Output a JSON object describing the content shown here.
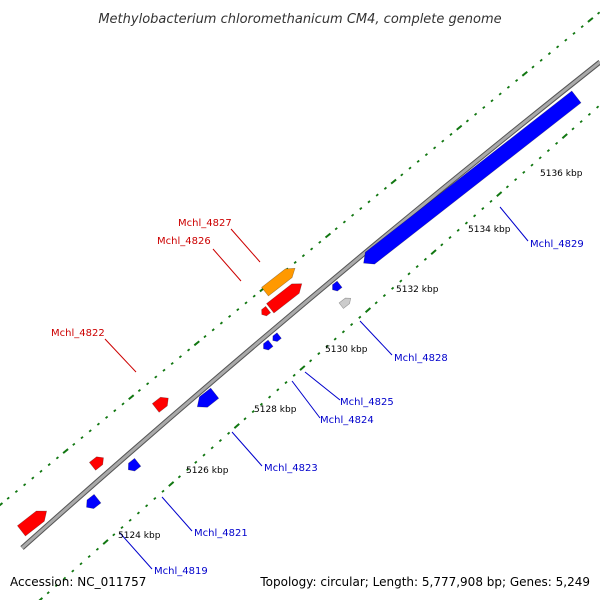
{
  "title": "Methylobacterium chloromethanicum CM4, complete genome",
  "footer": {
    "accession": "Accession: NC_011757",
    "topology": "Topology: circular; Length: 5,777,908 bp; Genes: 5,249"
  },
  "colors": {
    "forward": "#ff0000",
    "reverse": "#0000ff",
    "rna": "#ff9900",
    "pseudo": "#cccccc",
    "backbone": "#888888",
    "tick": "#117711",
    "forward_label": "#cc0000",
    "reverse_label": "#0000cc"
  },
  "scale_labels": [
    "5124 kbp",
    "5126 kbp",
    "5128 kbp",
    "5130 kbp",
    "5132 kbp",
    "5134 kbp",
    "5136 kbp"
  ],
  "gene_labels": [
    {
      "id": "Mchl_4827",
      "strand": "forward",
      "colorKey": "forward_label"
    },
    {
      "id": "Mchl_4826",
      "strand": "forward",
      "colorKey": "forward_label"
    },
    {
      "id": "Mchl_4822",
      "strand": "forward",
      "colorKey": "forward_label"
    },
    {
      "id": "Mchl_4829",
      "strand": "reverse",
      "colorKey": "reverse_label"
    },
    {
      "id": "Mchl_4828",
      "strand": "reverse",
      "colorKey": "reverse_label"
    },
    {
      "id": "Mchl_4825",
      "strand": "reverse",
      "colorKey": "reverse_label"
    },
    {
      "id": "Mchl_4824",
      "strand": "reverse",
      "colorKey": "reverse_label"
    },
    {
      "id": "Mchl_4823",
      "strand": "reverse",
      "colorKey": "reverse_label"
    },
    {
      "id": "Mchl_4821",
      "strand": "reverse",
      "colorKey": "reverse_label"
    },
    {
      "id": "Mchl_4819",
      "strand": "reverse",
      "colorKey": "reverse_label"
    }
  ]
}
